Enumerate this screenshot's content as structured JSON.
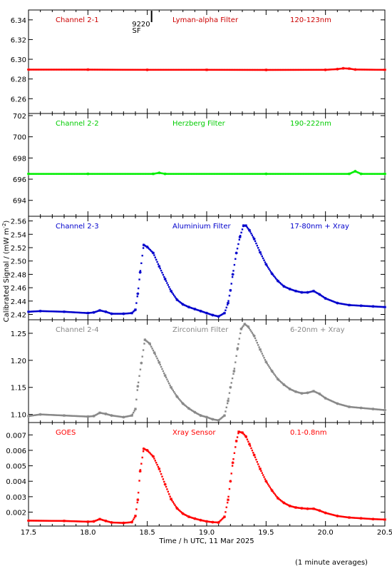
{
  "chart_data": {
    "type": "scatter",
    "xlabel": "Time / h UTC, 11 Mar 2025",
    "ylabel": "Calibrated Signal / (mW m",
    "ylabel_sup": "-2",
    "ylabel_close": ")",
    "footnote": "(1 minute averages)",
    "marker": "9220",
    "marker_sub": "SF",
    "marker_x": 18.53,
    "xlim": [
      17.5,
      20.5
    ],
    "xticks": [
      17.5,
      18.0,
      18.5,
      19.0,
      19.5,
      20.0,
      20.5
    ],
    "xtick_labels": [
      "17.5",
      "18.0",
      "18.5",
      "19.0",
      "19.5",
      "20.0",
      "20.5"
    ],
    "panels": [
      {
        "channel": "Channel 2-1",
        "filter": "Lyman-alpha Filter",
        "band": "120-123nm",
        "color": "#ff0000",
        "label_color": "#cc0000",
        "ylim": [
          6.245,
          6.35
        ],
        "yticks": [
          6.26,
          6.28,
          6.3,
          6.32,
          6.34
        ],
        "ytick_labels": [
          "6.26",
          "6.28",
          "6.30",
          "6.32",
          "6.34"
        ],
        "points": [
          [
            17.5,
            6.2895
          ],
          [
            18.0,
            6.2895
          ],
          [
            18.5,
            6.2893
          ],
          [
            19.0,
            6.2893
          ],
          [
            19.5,
            6.2892
          ],
          [
            20.0,
            6.2893
          ],
          [
            20.1,
            6.29
          ],
          [
            20.15,
            6.2908
          ],
          [
            20.2,
            6.2905
          ],
          [
            20.25,
            6.2896
          ],
          [
            20.5,
            6.2893
          ]
        ]
      },
      {
        "channel": "Channel 2-2",
        "filter": "Herzberg Filter",
        "band": "190-222nm",
        "color": "#00ee00",
        "label_color": "#00cc00",
        "ylim": [
          692.5,
          702.2
        ],
        "yticks": [
          694,
          696,
          698,
          700,
          702
        ],
        "ytick_labels": [
          "694",
          "696",
          "698",
          "700",
          "702"
        ],
        "points": [
          [
            17.5,
            696.5
          ],
          [
            18.0,
            696.5
          ],
          [
            18.55,
            696.5
          ],
          [
            18.6,
            696.6
          ],
          [
            18.65,
            696.5
          ],
          [
            19.5,
            696.5
          ],
          [
            20.2,
            696.5
          ],
          [
            20.25,
            696.75
          ],
          [
            20.3,
            696.5
          ],
          [
            20.5,
            696.5
          ]
        ]
      },
      {
        "channel": "Channel 2-3",
        "filter": "Aluminium Filter",
        "band": "17-80nm + Xray",
        "color": "#0000cc",
        "label_color": "#0000cc",
        "ylim": [
          2.412,
          2.567
        ],
        "yticks": [
          2.42,
          2.44,
          2.46,
          2.48,
          2.5,
          2.52,
          2.54,
          2.56
        ],
        "ytick_labels": [
          "2.42",
          "2.44",
          "2.46",
          "2.48",
          "2.50",
          "2.52",
          "2.54",
          "2.56"
        ],
        "points": [
          [
            17.5,
            2.424
          ],
          [
            17.6,
            2.425
          ],
          [
            17.8,
            2.424
          ],
          [
            18.0,
            2.422
          ],
          [
            18.05,
            2.423
          ],
          [
            18.1,
            2.426
          ],
          [
            18.15,
            2.424
          ],
          [
            18.2,
            2.421
          ],
          [
            18.3,
            2.421
          ],
          [
            18.37,
            2.422
          ],
          [
            18.4,
            2.427
          ],
          [
            18.42,
            2.451
          ],
          [
            18.44,
            2.483
          ],
          [
            18.47,
            2.524
          ],
          [
            18.5,
            2.521
          ],
          [
            18.55,
            2.512
          ],
          [
            18.6,
            2.492
          ],
          [
            18.65,
            2.473
          ],
          [
            18.7,
            2.455
          ],
          [
            18.75,
            2.442
          ],
          [
            18.8,
            2.435
          ],
          [
            18.85,
            2.431
          ],
          [
            18.9,
            2.428
          ],
          [
            18.95,
            2.425
          ],
          [
            19.0,
            2.422
          ],
          [
            19.05,
            2.419
          ],
          [
            19.1,
            2.417
          ],
          [
            19.15,
            2.422
          ],
          [
            19.18,
            2.437
          ],
          [
            19.2,
            2.456
          ],
          [
            19.22,
            2.48
          ],
          [
            19.25,
            2.512
          ],
          [
            19.28,
            2.536
          ],
          [
            19.31,
            2.553
          ],
          [
            19.33,
            2.553
          ],
          [
            19.36,
            2.546
          ],
          [
            19.4,
            2.533
          ],
          [
            19.45,
            2.513
          ],
          [
            19.5,
            2.495
          ],
          [
            19.55,
            2.481
          ],
          [
            19.6,
            2.47
          ],
          [
            19.65,
            2.462
          ],
          [
            19.7,
            2.458
          ],
          [
            19.75,
            2.455
          ],
          [
            19.8,
            2.453
          ],
          [
            19.85,
            2.453
          ],
          [
            19.9,
            2.455
          ],
          [
            19.95,
            2.45
          ],
          [
            20.0,
            2.444
          ],
          [
            20.1,
            2.437
          ],
          [
            20.2,
            2.434
          ],
          [
            20.3,
            2.433
          ],
          [
            20.4,
            2.432
          ],
          [
            20.5,
            2.431
          ]
        ]
      },
      {
        "channel": "Channel 2-4",
        "filter": "Zirconium Filter",
        "band": "6-20nm + Xray",
        "color": "#888888",
        "label_color": "#888888",
        "ylim": [
          1.085,
          1.275
        ],
        "yticks": [
          1.1,
          1.15,
          1.2,
          1.25
        ],
        "ytick_labels": [
          "1.10",
          "1.15",
          "1.20",
          "1.25"
        ],
        "points": [
          [
            17.5,
            1.097
          ],
          [
            17.6,
            1.1
          ],
          [
            17.8,
            1.098
          ],
          [
            18.0,
            1.096
          ],
          [
            18.05,
            1.097
          ],
          [
            18.1,
            1.103
          ],
          [
            18.15,
            1.101
          ],
          [
            18.2,
            1.098
          ],
          [
            18.3,
            1.095
          ],
          [
            18.37,
            1.098
          ],
          [
            18.4,
            1.11
          ],
          [
            18.42,
            1.152
          ],
          [
            18.45,
            1.195
          ],
          [
            18.48,
            1.238
          ],
          [
            18.52,
            1.231
          ],
          [
            18.56,
            1.214
          ],
          [
            18.6,
            1.196
          ],
          [
            18.65,
            1.172
          ],
          [
            18.7,
            1.15
          ],
          [
            18.75,
            1.133
          ],
          [
            18.8,
            1.12
          ],
          [
            18.85,
            1.111
          ],
          [
            18.9,
            1.104
          ],
          [
            18.95,
            1.098
          ],
          [
            19.0,
            1.095
          ],
          [
            19.05,
            1.091
          ],
          [
            19.1,
            1.089
          ],
          [
            19.15,
            1.098
          ],
          [
            19.18,
            1.125
          ],
          [
            19.2,
            1.15
          ],
          [
            19.23,
            1.18
          ],
          [
            19.26,
            1.222
          ],
          [
            19.29,
            1.258
          ],
          [
            19.32,
            1.267
          ],
          [
            19.35,
            1.262
          ],
          [
            19.4,
            1.245
          ],
          [
            19.45,
            1.22
          ],
          [
            19.5,
            1.197
          ],
          [
            19.55,
            1.18
          ],
          [
            19.6,
            1.165
          ],
          [
            19.65,
            1.155
          ],
          [
            19.7,
            1.147
          ],
          [
            19.75,
            1.142
          ],
          [
            19.8,
            1.139
          ],
          [
            19.85,
            1.14
          ],
          [
            19.9,
            1.143
          ],
          [
            19.95,
            1.138
          ],
          [
            20.0,
            1.13
          ],
          [
            20.1,
            1.12
          ],
          [
            20.2,
            1.114
          ],
          [
            20.3,
            1.112
          ],
          [
            20.4,
            1.11
          ],
          [
            20.5,
            1.108
          ]
        ]
      },
      {
        "channel": "GOES",
        "filter": "Xray Sensor",
        "band": "0.1-0.8nm",
        "color": "#ff0000",
        "label_color": "#ff0000",
        "ylim": [
          0.0011,
          0.0078
        ],
        "yticks": [
          0.002,
          0.003,
          0.004,
          0.005,
          0.006,
          0.007
        ],
        "ytick_labels": [
          "0.002",
          "0.003",
          "0.004",
          "0.005",
          "0.006",
          "0.007"
        ],
        "points": [
          [
            17.5,
            0.00145
          ],
          [
            17.8,
            0.00143
          ],
          [
            18.0,
            0.00138
          ],
          [
            18.05,
            0.0014
          ],
          [
            18.1,
            0.00155
          ],
          [
            18.15,
            0.00143
          ],
          [
            18.2,
            0.00133
          ],
          [
            18.3,
            0.0013
          ],
          [
            18.37,
            0.00135
          ],
          [
            18.4,
            0.00175
          ],
          [
            18.42,
            0.0028
          ],
          [
            18.44,
            0.00465
          ],
          [
            18.47,
            0.0061
          ],
          [
            18.5,
            0.006
          ],
          [
            18.55,
            0.0056
          ],
          [
            18.6,
            0.0048
          ],
          [
            18.65,
            0.0038
          ],
          [
            18.7,
            0.00285
          ],
          [
            18.75,
            0.00225
          ],
          [
            18.8,
            0.0019
          ],
          [
            18.85,
            0.0017
          ],
          [
            18.9,
            0.00158
          ],
          [
            18.95,
            0.00148
          ],
          [
            19.0,
            0.0014
          ],
          [
            19.05,
            0.00135
          ],
          [
            19.1,
            0.00133
          ],
          [
            19.15,
            0.0017
          ],
          [
            19.18,
            0.0028
          ],
          [
            19.2,
            0.004
          ],
          [
            19.22,
            0.0052
          ],
          [
            19.25,
            0.0066
          ],
          [
            19.27,
            0.0072
          ],
          [
            19.3,
            0.00715
          ],
          [
            19.33,
            0.0069
          ],
          [
            19.36,
            0.0064
          ],
          [
            19.4,
            0.0057
          ],
          [
            19.45,
            0.0048
          ],
          [
            19.5,
            0.004
          ],
          [
            19.55,
            0.0034
          ],
          [
            19.6,
            0.0029
          ],
          [
            19.65,
            0.0026
          ],
          [
            19.7,
            0.0024
          ],
          [
            19.75,
            0.0023
          ],
          [
            19.8,
            0.00225
          ],
          [
            19.85,
            0.00222
          ],
          [
            19.9,
            0.00222
          ],
          [
            19.95,
            0.0021
          ],
          [
            20.0,
            0.00195
          ],
          [
            20.1,
            0.00175
          ],
          [
            20.2,
            0.00165
          ],
          [
            20.3,
            0.0016
          ],
          [
            20.4,
            0.00155
          ],
          [
            20.5,
            0.00152
          ]
        ]
      }
    ]
  }
}
